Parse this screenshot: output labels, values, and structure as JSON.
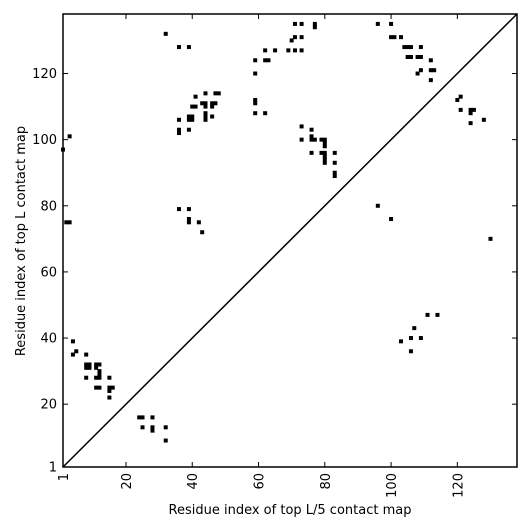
{
  "chart_data": {
    "type": "scatter",
    "title": "",
    "xlabel": "Residue index of top L/5 contact map",
    "ylabel": "Residue index of top L contact map",
    "xlim": [
      1,
      138
    ],
    "ylim": [
      1,
      138
    ],
    "xticks": [
      1,
      20,
      40,
      60,
      80,
      100,
      120
    ],
    "yticks": [
      1,
      20,
      40,
      60,
      80,
      100,
      120
    ],
    "grid": false,
    "marker": "square",
    "color": "#000000",
    "diagonal": [
      [
        1,
        1
      ],
      [
        138,
        138
      ]
    ],
    "series": [
      {
        "name": "",
        "points": [
          [
            32,
            132
          ],
          [
            36,
            128
          ],
          [
            39,
            128
          ],
          [
            71,
            135
          ],
          [
            73,
            135
          ],
          [
            77,
            135
          ],
          [
            77,
            134
          ],
          [
            96,
            135
          ],
          [
            100,
            135
          ],
          [
            71,
            131
          ],
          [
            70,
            130
          ],
          [
            73,
            131
          ],
          [
            100,
            131
          ],
          [
            101,
            131
          ],
          [
            103,
            131
          ],
          [
            69,
            127
          ],
          [
            71,
            127
          ],
          [
            73,
            127
          ],
          [
            62,
            127
          ],
          [
            65,
            127
          ],
          [
            104,
            128
          ],
          [
            105,
            128
          ],
          [
            106,
            128
          ],
          [
            109,
            128
          ],
          [
            62,
            124
          ],
          [
            63,
            124
          ],
          [
            59,
            124
          ],
          [
            105,
            125
          ],
          [
            106,
            125
          ],
          [
            108,
            125
          ],
          [
            109,
            125
          ],
          [
            112,
            124
          ],
          [
            59,
            120
          ],
          [
            108,
            120
          ],
          [
            109,
            121
          ],
          [
            112,
            121
          ],
          [
            113,
            121
          ],
          [
            112,
            118
          ],
          [
            41,
            113
          ],
          [
            44,
            114
          ],
          [
            47,
            114
          ],
          [
            48,
            114
          ],
          [
            43,
            111
          ],
          [
            44,
            111
          ],
          [
            46,
            111
          ],
          [
            47,
            111
          ],
          [
            40,
            110
          ],
          [
            41,
            110
          ],
          [
            44,
            110
          ],
          [
            46,
            110
          ],
          [
            59,
            112
          ],
          [
            59,
            111
          ],
          [
            120,
            112
          ],
          [
            121,
            113
          ],
          [
            44,
            108
          ],
          [
            59,
            108
          ],
          [
            62,
            108
          ],
          [
            121,
            109
          ],
          [
            124,
            109
          ],
          [
            125,
            109
          ],
          [
            124,
            108
          ],
          [
            36,
            106
          ],
          [
            39,
            107
          ],
          [
            40,
            107
          ],
          [
            39,
            106
          ],
          [
            40,
            106
          ],
          [
            44,
            107
          ],
          [
            44,
            106
          ],
          [
            46,
            107
          ],
          [
            128,
            106
          ],
          [
            124,
            105
          ],
          [
            36,
            103
          ],
          [
            39,
            103
          ],
          [
            36,
            102
          ],
          [
            73,
            104
          ],
          [
            76,
            103
          ],
          [
            3,
            101
          ],
          [
            76,
            101
          ],
          [
            73,
            100
          ],
          [
            76,
            100
          ],
          [
            77,
            100
          ],
          [
            79,
            100
          ],
          [
            80,
            100
          ],
          [
            80,
            99
          ],
          [
            80,
            98
          ],
          [
            1,
            97
          ],
          [
            76,
            96
          ],
          [
            79,
            96
          ],
          [
            80,
            96
          ],
          [
            80,
            95
          ],
          [
            83,
            96
          ],
          [
            80,
            94
          ],
          [
            80,
            93
          ],
          [
            83,
            93
          ],
          [
            83,
            90
          ],
          [
            83,
            89
          ],
          [
            96,
            80
          ],
          [
            36,
            79
          ],
          [
            39,
            79
          ],
          [
            39,
            76
          ],
          [
            39,
            75
          ],
          [
            42,
            75
          ],
          [
            100,
            76
          ],
          [
            43,
            72
          ],
          [
            2,
            75
          ],
          [
            3,
            75
          ],
          [
            130,
            70
          ],
          [
            111,
            47
          ],
          [
            114,
            47
          ],
          [
            107,
            43
          ],
          [
            103,
            39
          ],
          [
            106,
            40
          ],
          [
            109,
            40
          ],
          [
            106,
            36
          ],
          [
            4,
            39
          ],
          [
            4,
            35
          ],
          [
            5,
            36
          ],
          [
            8,
            35
          ],
          [
            8,
            32
          ],
          [
            9,
            32
          ],
          [
            8,
            31
          ],
          [
            9,
            31
          ],
          [
            11,
            32
          ],
          [
            12,
            32
          ],
          [
            11,
            31
          ],
          [
            12,
            30
          ],
          [
            8,
            28
          ],
          [
            11,
            28
          ],
          [
            12,
            28
          ],
          [
            12,
            29
          ],
          [
            15,
            28
          ],
          [
            11,
            25
          ],
          [
            12,
            25
          ],
          [
            15,
            25
          ],
          [
            16,
            25
          ],
          [
            15,
            24
          ],
          [
            15,
            22
          ],
          [
            24,
            16
          ],
          [
            25,
            16
          ],
          [
            28,
            16
          ],
          [
            25,
            13
          ],
          [
            28,
            13
          ],
          [
            28,
            12
          ],
          [
            32,
            13
          ],
          [
            32,
            9
          ]
        ]
      }
    ]
  }
}
